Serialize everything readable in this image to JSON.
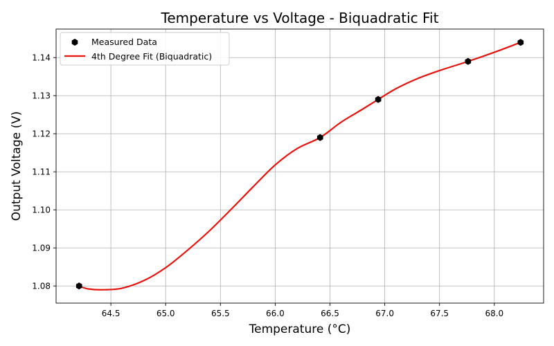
{
  "chart_data": {
    "type": "scatter",
    "title": "Temperature vs Voltage - Biquadratic Fit",
    "xlabel": "Temperature (°C)",
    "ylabel": "Output Voltage (V)",
    "xlim": [
      64.0,
      68.45
    ],
    "ylim": [
      1.0755,
      1.1475
    ],
    "x_ticks": [
      64.5,
      65.0,
      65.5,
      66.0,
      66.5,
      67.0,
      67.5,
      68.0
    ],
    "y_ticks": [
      1.08,
      1.09,
      1.1,
      1.11,
      1.12,
      1.13,
      1.14
    ],
    "x_tick_labels": [
      "64.5",
      "65.0",
      "65.5",
      "66.0",
      "66.5",
      "67.0",
      "67.5",
      "68.0"
    ],
    "y_tick_labels": [
      "1.08",
      "1.09",
      "1.10",
      "1.11",
      "1.12",
      "1.13",
      "1.14"
    ],
    "grid": true,
    "legend_position": "upper-left",
    "series": [
      {
        "name": "Measured Data",
        "kind": "scatter",
        "marker": "hexagon",
        "color": "#000000",
        "x": [
          64.21,
          66.41,
          66.94,
          67.76,
          68.24
        ],
        "y": [
          1.08,
          1.119,
          1.129,
          1.139,
          1.144
        ]
      },
      {
        "name": "4th Degree Fit (Biquadratic)",
        "kind": "line",
        "color": "#e8120c",
        "x": [
          64.21,
          64.3,
          64.42,
          64.6,
          64.8,
          65.0,
          65.2,
          65.4,
          65.6,
          65.8,
          66.0,
          66.2,
          66.41,
          66.6,
          66.8,
          66.94,
          67.1,
          67.3,
          67.5,
          67.76,
          68.0,
          68.24
        ],
        "y": [
          1.0799,
          1.0792,
          1.079,
          1.0794,
          1.0814,
          1.0848,
          1.0894,
          1.0945,
          1.1002,
          1.1061,
          1.1118,
          1.1161,
          1.119,
          1.123,
          1.1265,
          1.129,
          1.1318,
          1.1345,
          1.1366,
          1.139,
          1.1414,
          1.144
        ]
      }
    ]
  }
}
